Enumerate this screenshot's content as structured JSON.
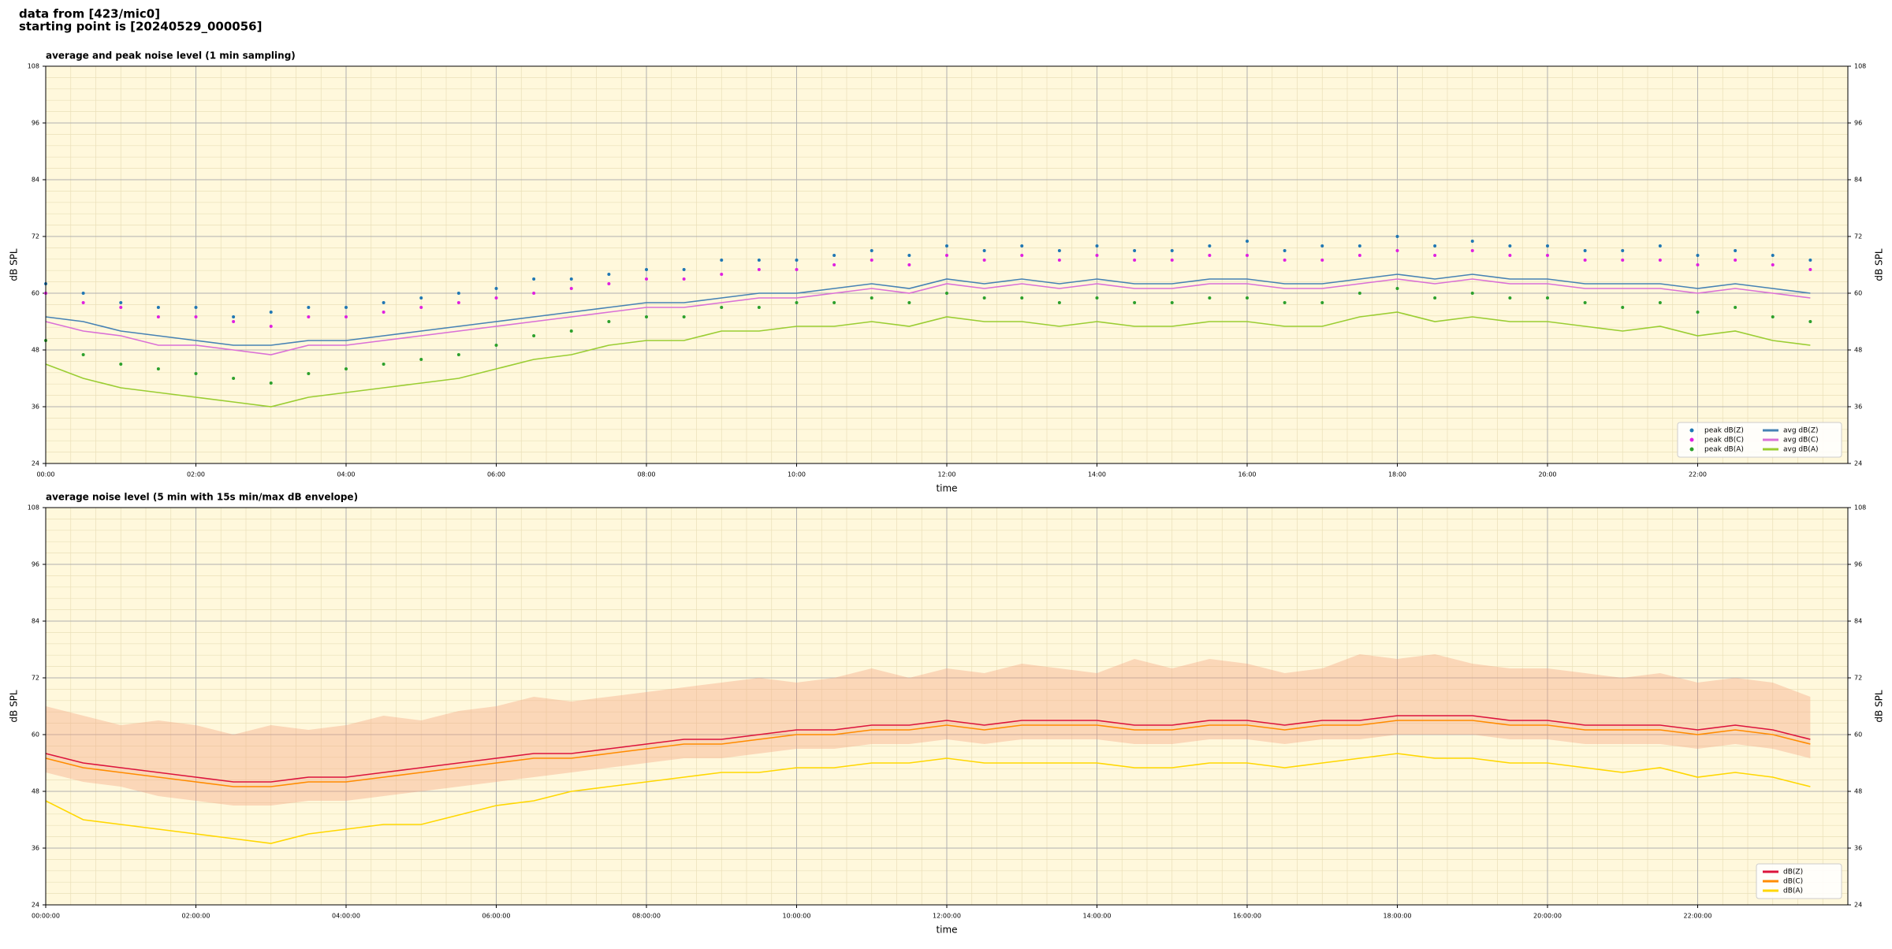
{
  "suptitle": [
    "data from [423/mic0]",
    "starting point is [20240529_000056]"
  ],
  "chart_data": [
    {
      "type": "line",
      "title": "average and peak noise level (1 min sampling)",
      "xlabel": "time",
      "ylabel": "dB SPL",
      "xlim": [
        0,
        24
      ],
      "ylim": [
        24,
        108
      ],
      "yticks": [
        24,
        36,
        48,
        60,
        72,
        84,
        96,
        108
      ],
      "xticks": [
        {
          "value": 0,
          "label": "00:00"
        },
        {
          "value": 2,
          "label": "02:00"
        },
        {
          "value": 4,
          "label": "04:00"
        },
        {
          "value": 6,
          "label": "06:00"
        },
        {
          "value": 8,
          "label": "08:00"
        },
        {
          "value": 10,
          "label": "10:00"
        },
        {
          "value": 12,
          "label": "12:00"
        },
        {
          "value": 14,
          "label": "14:00"
        },
        {
          "value": 16,
          "label": "16:00"
        },
        {
          "value": 18,
          "label": "18:00"
        },
        {
          "value": 20,
          "label": "20:00"
        },
        {
          "value": 22,
          "label": "22:00"
        }
      ],
      "grid": true,
      "legend": "lower right",
      "legend_columns": 2,
      "x": [
        0,
        0.5,
        1,
        1.5,
        2,
        2.5,
        3,
        3.5,
        4,
        4.5,
        5,
        5.5,
        6,
        6.5,
        7,
        7.5,
        8,
        8.5,
        9,
        9.5,
        10,
        10.5,
        11,
        11.5,
        12,
        12.5,
        13,
        13.5,
        14,
        14.5,
        15,
        15.5,
        16,
        16.5,
        17,
        17.5,
        18,
        18.5,
        19,
        19.5,
        20,
        20.5,
        21,
        21.5,
        22,
        22.5,
        23,
        23.5
      ],
      "series": [
        {
          "name": "peak dB(Z)",
          "color": "#1f77b4",
          "mode": "markers",
          "values": [
            62,
            60,
            58,
            57,
            57,
            55,
            56,
            57,
            57,
            58,
            59,
            60,
            61,
            63,
            63,
            64,
            65,
            65,
            67,
            67,
            67,
            68,
            69,
            68,
            70,
            69,
            70,
            69,
            70,
            69,
            69,
            70,
            71,
            69,
            70,
            70,
            72,
            70,
            71,
            70,
            70,
            69,
            69,
            70,
            68,
            69,
            68,
            67
          ]
        },
        {
          "name": "peak dB(C)",
          "color": "#e020e0",
          "mode": "markers",
          "values": [
            60,
            58,
            57,
            55,
            55,
            54,
            53,
            55,
            55,
            56,
            57,
            58,
            59,
            60,
            61,
            62,
            63,
            63,
            64,
            65,
            65,
            66,
            67,
            66,
            68,
            67,
            68,
            67,
            68,
            67,
            67,
            68,
            68,
            67,
            67,
            68,
            69,
            68,
            69,
            68,
            68,
            67,
            67,
            67,
            66,
            67,
            66,
            65
          ]
        },
        {
          "name": "peak dB(A)",
          "color": "#2ca02c",
          "mode": "markers",
          "values": [
            50,
            47,
            45,
            44,
            43,
            42,
            41,
            43,
            44,
            45,
            46,
            47,
            49,
            51,
            52,
            54,
            55,
            55,
            57,
            57,
            58,
            58,
            59,
            58,
            60,
            59,
            59,
            58,
            59,
            58,
            58,
            59,
            59,
            58,
            58,
            60,
            61,
            59,
            60,
            59,
            59,
            58,
            57,
            58,
            56,
            57,
            55,
            54
          ]
        },
        {
          "name": "avg dB(Z)",
          "color": "#4682b4",
          "mode": "line",
          "values": [
            55,
            54,
            52,
            51,
            50,
            49,
            49,
            50,
            50,
            51,
            52,
            53,
            54,
            55,
            56,
            57,
            58,
            58,
            59,
            60,
            60,
            61,
            62,
            61,
            63,
            62,
            63,
            62,
            63,
            62,
            62,
            63,
            63,
            62,
            62,
            63,
            64,
            63,
            64,
            63,
            63,
            62,
            62,
            62,
            61,
            62,
            61,
            60
          ]
        },
        {
          "name": "avg dB(C)",
          "color": "#da70d6",
          "mode": "line",
          "values": [
            54,
            52,
            51,
            49,
            49,
            48,
            47,
            49,
            49,
            50,
            51,
            52,
            53,
            54,
            55,
            56,
            57,
            57,
            58,
            59,
            59,
            60,
            61,
            60,
            62,
            61,
            62,
            61,
            62,
            61,
            61,
            62,
            62,
            61,
            61,
            62,
            63,
            62,
            63,
            62,
            62,
            61,
            61,
            61,
            60,
            61,
            60,
            59
          ]
        },
        {
          "name": "avg dB(A)",
          "color": "#9acd32",
          "mode": "line",
          "values": [
            45,
            42,
            40,
            39,
            38,
            37,
            36,
            38,
            39,
            40,
            41,
            42,
            44,
            46,
            47,
            49,
            50,
            50,
            52,
            52,
            53,
            53,
            54,
            53,
            55,
            54,
            54,
            53,
            54,
            53,
            53,
            54,
            54,
            53,
            53,
            55,
            56,
            54,
            55,
            54,
            54,
            53,
            52,
            53,
            51,
            52,
            50,
            49
          ]
        }
      ]
    },
    {
      "type": "line",
      "title": "average noise level (5 min with 15s min/max dB envelope)",
      "xlabel": "time",
      "ylabel": "dB SPL",
      "xlim": [
        0,
        24
      ],
      "ylim": [
        24,
        108
      ],
      "yticks": [
        24,
        36,
        48,
        60,
        72,
        84,
        96,
        108
      ],
      "xticks": [
        {
          "value": 0,
          "label": "00:00:00"
        },
        {
          "value": 2,
          "label": "02:00:00"
        },
        {
          "value": 4,
          "label": "04:00:00"
        },
        {
          "value": 6,
          "label": "06:00:00"
        },
        {
          "value": 8,
          "label": "08:00:00"
        },
        {
          "value": 10,
          "label": "10:00:00"
        },
        {
          "value": 12,
          "label": "12:00:00"
        },
        {
          "value": 14,
          "label": "14:00:00"
        },
        {
          "value": 16,
          "label": "16:00:00"
        },
        {
          "value": 18,
          "label": "18:00:00"
        },
        {
          "value": 20,
          "label": "20:00:00"
        },
        {
          "value": 22,
          "label": "22:00:00"
        }
      ],
      "grid": true,
      "legend": "lower right",
      "legend_columns": 1,
      "x": [
        0,
        0.5,
        1,
        1.5,
        2,
        2.5,
        3,
        3.5,
        4,
        4.5,
        5,
        5.5,
        6,
        6.5,
        7,
        7.5,
        8,
        8.5,
        9,
        9.5,
        10,
        10.5,
        11,
        11.5,
        12,
        12.5,
        13,
        13.5,
        14,
        14.5,
        15,
        15.5,
        16,
        16.5,
        17,
        17.5,
        18,
        18.5,
        19,
        19.5,
        20,
        20.5,
        21,
        21.5,
        22,
        22.5,
        23,
        23.5
      ],
      "envelope": {
        "color": "#f4a582",
        "low": [
          52,
          50,
          49,
          47,
          46,
          45,
          45,
          46,
          46,
          47,
          48,
          49,
          50,
          51,
          52,
          53,
          54,
          55,
          55,
          56,
          57,
          57,
          58,
          58,
          59,
          58,
          59,
          59,
          59,
          58,
          58,
          59,
          59,
          58,
          59,
          59,
          60,
          60,
          60,
          59,
          59,
          58,
          58,
          58,
          57,
          58,
          57,
          55
        ],
        "high": [
          66,
          64,
          62,
          63,
          62,
          60,
          62,
          61,
          62,
          64,
          63,
          65,
          66,
          68,
          67,
          68,
          69,
          70,
          71,
          72,
          71,
          72,
          74,
          72,
          74,
          73,
          75,
          74,
          73,
          76,
          74,
          76,
          75,
          73,
          74,
          77,
          76,
          77,
          75,
          74,
          74,
          73,
          72,
          73,
          71,
          72,
          71,
          68
        ]
      },
      "series": [
        {
          "name": "dB(Z)",
          "color": "#dc143c",
          "mode": "line",
          "values": [
            56,
            54,
            53,
            52,
            51,
            50,
            50,
            51,
            51,
            52,
            53,
            54,
            55,
            56,
            56,
            57,
            58,
            59,
            59,
            60,
            61,
            61,
            62,
            62,
            63,
            62,
            63,
            63,
            63,
            62,
            62,
            63,
            63,
            62,
            63,
            63,
            64,
            64,
            64,
            63,
            63,
            62,
            62,
            62,
            61,
            62,
            61,
            59
          ]
        },
        {
          "name": "dB(C)",
          "color": "#ff8c00",
          "mode": "line",
          "values": [
            55,
            53,
            52,
            51,
            50,
            49,
            49,
            50,
            50,
            51,
            52,
            53,
            54,
            55,
            55,
            56,
            57,
            58,
            58,
            59,
            60,
            60,
            61,
            61,
            62,
            61,
            62,
            62,
            62,
            61,
            61,
            62,
            62,
            61,
            62,
            62,
            63,
            63,
            63,
            62,
            62,
            61,
            61,
            61,
            60,
            61,
            60,
            58
          ]
        },
        {
          "name": "dB(A)",
          "color": "#ffd700",
          "mode": "line",
          "values": [
            46,
            42,
            41,
            40,
            39,
            38,
            37,
            39,
            40,
            41,
            41,
            43,
            45,
            46,
            48,
            49,
            50,
            51,
            52,
            52,
            53,
            53,
            54,
            54,
            55,
            54,
            54,
            54,
            54,
            53,
            53,
            54,
            54,
            53,
            54,
            55,
            56,
            55,
            55,
            54,
            54,
            53,
            52,
            53,
            51,
            52,
            51,
            49
          ]
        }
      ]
    }
  ]
}
